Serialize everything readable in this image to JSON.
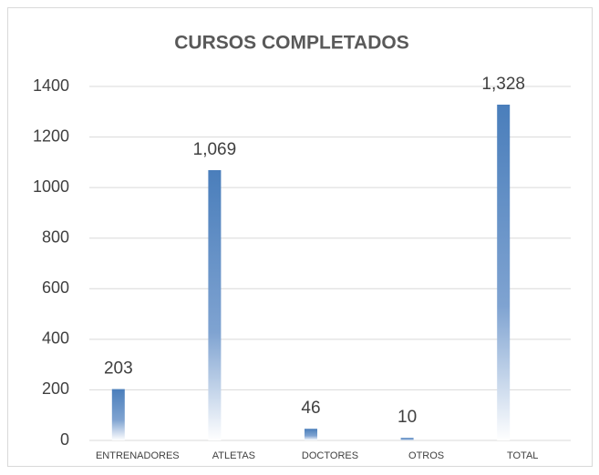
{
  "chart_data": {
    "type": "bar",
    "title": "CURSOS COMPLETADOS",
    "categories": [
      "ENTRENADORES",
      "ATLETAS",
      "DOCTORES",
      "OTROS",
      "TOTAL"
    ],
    "values": [
      203,
      1069,
      46,
      10,
      1328
    ],
    "value_labels": [
      "203",
      "1,069",
      "46",
      "10",
      "1,328"
    ],
    "color": "#4a7ebb",
    "ylim": [
      0,
      1400
    ],
    "yticks": [
      0,
      200,
      400,
      600,
      800,
      1000,
      1200,
      1400
    ],
    "grid": true
  }
}
